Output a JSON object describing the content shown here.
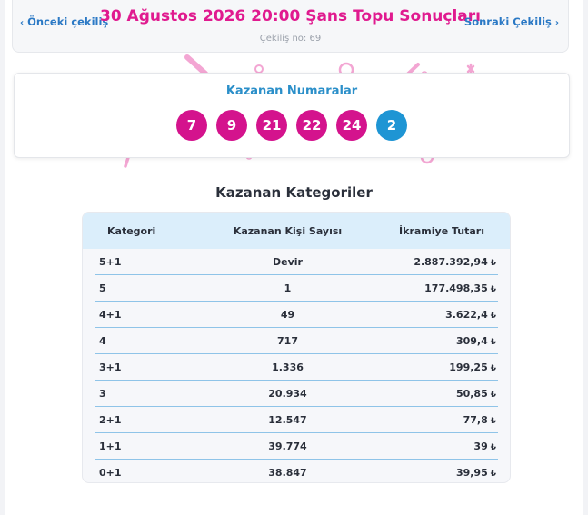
{
  "header": {
    "prev_label": "Önceki çekiliş",
    "next_label": "Sonraki Çekiliş",
    "title": "30 Ağustos 2026 20:00 Şans Topu Sonuçları",
    "draw_number": "Çekiliş no: 69"
  },
  "winning": {
    "title": "Kazanan Numaralar",
    "main_numbers": [
      "7",
      "9",
      "21",
      "22",
      "24"
    ],
    "bonus_number": "2"
  },
  "categories": {
    "title": "Kazanan Kategoriler",
    "columns": [
      "Kategori",
      "Kazanan Kişi Sayısı",
      "İkramiye Tutarı"
    ],
    "currency_symbol": "₺",
    "rows": [
      {
        "category": "5+1",
        "winners": "Devir",
        "prize": "2.887.392,94"
      },
      {
        "category": "5",
        "winners": "1",
        "prize": "177.498,35"
      },
      {
        "category": "4+1",
        "winners": "49",
        "prize": "3.622,4"
      },
      {
        "category": "4",
        "winners": "717",
        "prize": "309,4"
      },
      {
        "category": "3+1",
        "winners": "1.336",
        "prize": "199,25"
      },
      {
        "category": "3",
        "winners": "20.934",
        "prize": "50,85"
      },
      {
        "category": "2+1",
        "winners": "12.547",
        "prize": "77,8"
      },
      {
        "category": "1+1",
        "winners": "39.774",
        "prize": "39"
      },
      {
        "category": "0+1",
        "winners": "38.847",
        "prize": "39,95"
      }
    ]
  },
  "colors": {
    "title_pink": "#e01a8f",
    "ball_main": "#d4138d",
    "ball_bonus": "#1e95d4",
    "link_blue": "#2b79c5",
    "header_row": "#dbeefb"
  }
}
